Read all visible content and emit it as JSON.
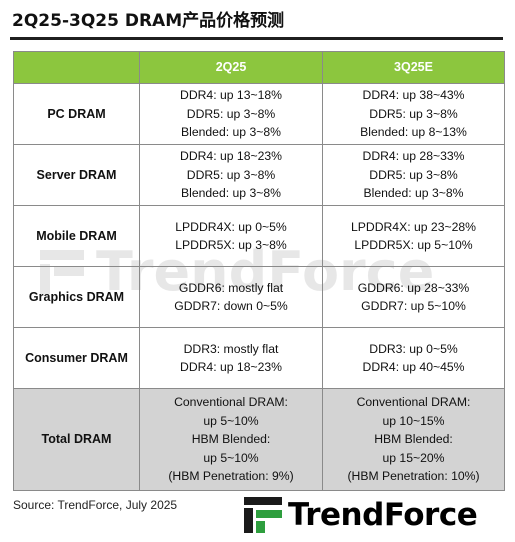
{
  "title": "2Q25-3Q25 DRAM产品价格预测",
  "table": {
    "headers": [
      "",
      "2Q25",
      "3Q25E"
    ],
    "rows": [
      {
        "category": "PC DRAM",
        "q2": [
          "DDR4: up 13~18%",
          "DDR5: up 3~8%",
          "Blended: up 3~8%"
        ],
        "q3": [
          "DDR4: up 38~43%",
          "DDR5: up 3~8%",
          "Blended: up 8~13%"
        ]
      },
      {
        "category": "Server DRAM",
        "q2": [
          "DDR4: up 18~23%",
          "DDR5: up 3~8%",
          "Blended: up 3~8%"
        ],
        "q3": [
          "DDR4: up 28~33%",
          "DDR5: up 3~8%",
          "Blended: up 3~8%"
        ]
      },
      {
        "category": "Mobile DRAM",
        "q2": [
          "LPDDR4X: up 0~5%",
          "LPDDR5X: up 3~8%"
        ],
        "q3": [
          "LPDDR4X: up 23~28%",
          "LPDDR5X: up 5~10%"
        ]
      },
      {
        "category": "Graphics DRAM",
        "q2": [
          "GDDR6: mostly flat",
          "GDDR7: down 0~5%"
        ],
        "q3": [
          "GDDR6: up 28~33%",
          "GDDR7: up 5~10%"
        ]
      },
      {
        "category": "Consumer DRAM",
        "q2": [
          "DDR3: mostly flat",
          "DDR4: up 18~23%"
        ],
        "q3": [
          "DDR3: up 0~5%",
          "DDR4: up 40~45%"
        ]
      },
      {
        "category": "Total DRAM",
        "q2": [
          "Conventional DRAM:",
          "up 5~10%",
          "HBM Blended:",
          "up 5~10%",
          "(HBM Penetration: 9%)"
        ],
        "q3": [
          "Conventional DRAM:",
          "up 10~15%",
          "HBM Blended:",
          "up 15~20%",
          "(HBM Penetration: 10%)"
        ]
      }
    ]
  },
  "source": "Source: TrendForce, July 2025",
  "logo_text": "TrendForce",
  "watermark_text": "TrendForce",
  "colors": {
    "header_green": "#8cc63e",
    "total_gray": "#d3d3d3",
    "logo_green": "#2e9e3e"
  }
}
